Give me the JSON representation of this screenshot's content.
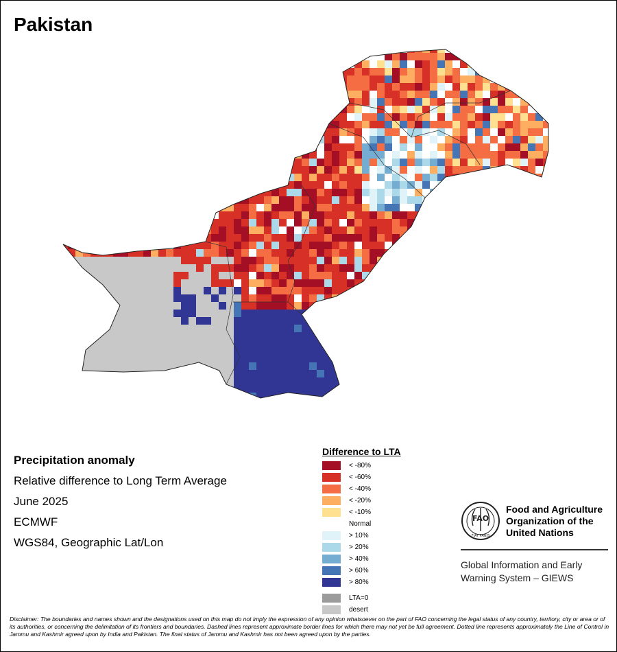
{
  "title": "Pakistan",
  "info": {
    "heading": "Precipitation anomaly",
    "line1": "Relative difference to Long Term Average",
    "line2": "June 2025",
    "line3": "ECMWF",
    "line4": "WGS84, Geographic Lat/Lon"
  },
  "legend": {
    "title": "Difference to LTA",
    "items": [
      {
        "label": "< -80%",
        "color": "#a50f26"
      },
      {
        "label": "< -60%",
        "color": "#d73027"
      },
      {
        "label": "< -40%",
        "color": "#f46d43"
      },
      {
        "label": "< -20%",
        "color": "#fdae61"
      },
      {
        "label": "< -10%",
        "color": "#fee090"
      },
      {
        "label": "Normal",
        "color": "#ffffff"
      },
      {
        "label": "> 10%",
        "color": "#e0f3f8"
      },
      {
        "label": "> 20%",
        "color": "#abd9e9"
      },
      {
        "label": "> 40%",
        "color": "#74add1"
      },
      {
        "label": "> 60%",
        "color": "#4575b4"
      },
      {
        "label": "> 80%",
        "color": "#313695"
      }
    ],
    "extra": [
      {
        "label": "LTA=0",
        "color": "#9b9b9b"
      },
      {
        "label": "desert",
        "color": "#c8c8c8"
      }
    ]
  },
  "fao": {
    "name1": "Food and Agriculture",
    "name2": "Organization of the",
    "name3": "United Nations",
    "logo_letters": "FAO",
    "motto": "FIAT PANIS",
    "giews1": "Global Information and Early",
    "giews2": "Warning System – GIEWS"
  },
  "disclaimer": "Disclaimer: The boundaries and names shown and the designations used on this map do not imply the expression of any opinion whatsoever on the part of FAO concerning the legal status of any country, territory, city or area or of its authorities, or concerning the delimitation of its frontiers and boundaries. Dashed lines represent approximate border lines for which there may not yet be full agreement. Dotted line represents approximately the Line of Control in Jammu and Kashmir agreed upon by India and Pakistan. The final status of Jammu and Kashmir has not been agreed upon by the parties."
}
